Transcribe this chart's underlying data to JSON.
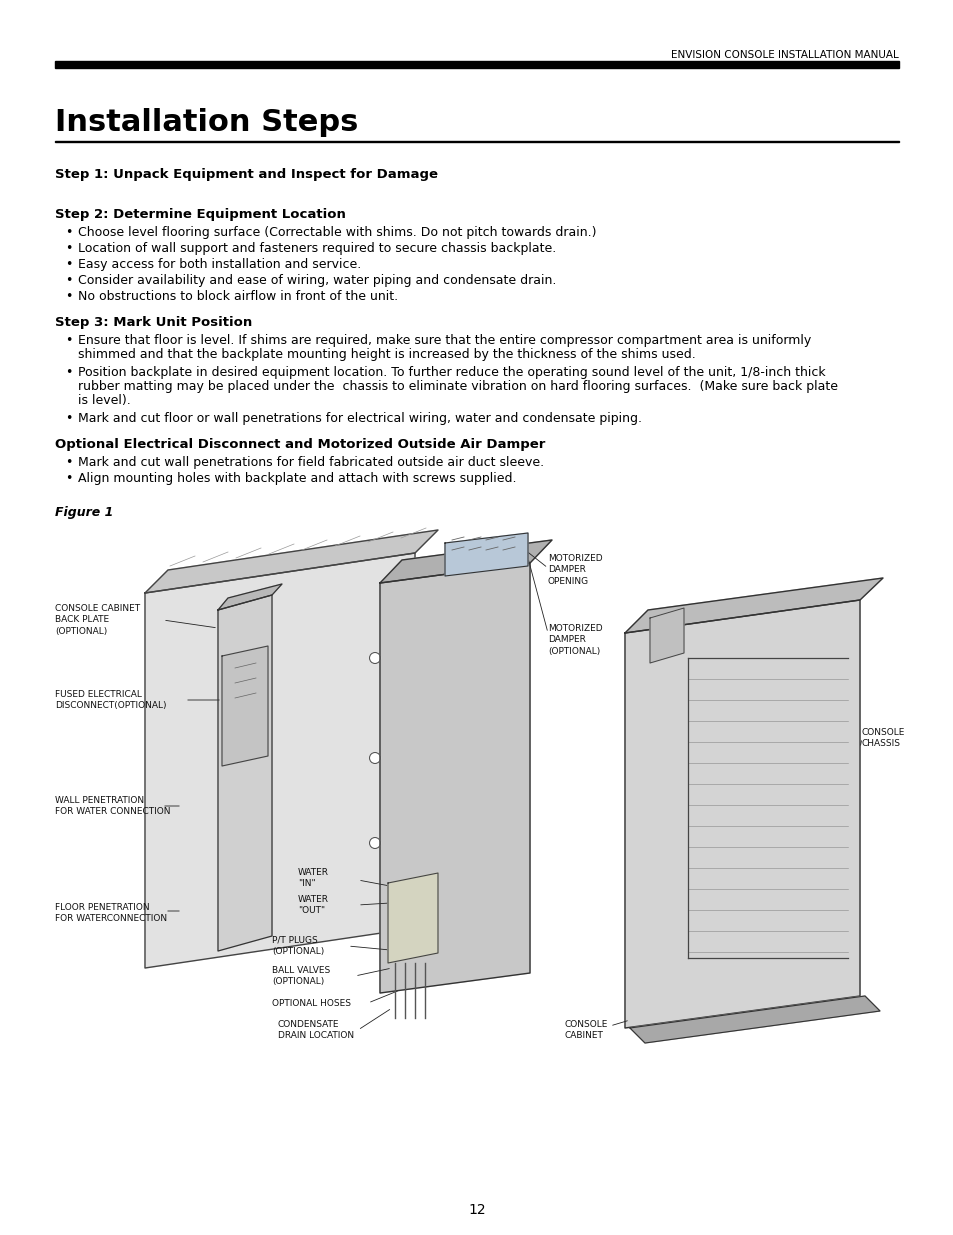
{
  "header_text": "ENVISION CONSOLE INSTALLATION MANUAL",
  "title": "Installation Steps",
  "step1_heading": "Step 1: Unpack Equipment and Inspect for Damage",
  "step2_heading": "Step 2: Determine Equipment Location",
  "step2_bullets": [
    "Choose level flooring surface (Correctable with shims. Do not pitch towards drain.)",
    "Location of wall support and fasteners required to secure chassis backplate.",
    "Easy access for both installation and service.",
    "Consider availability and ease of wiring, water piping and condensate drain.",
    "No obstructions to block airflow in front of the unit."
  ],
  "step3_heading": "Step 3: Mark Unit Position",
  "step3_bullet1_line1": "Ensure that floor is level. If shims are required, make sure that the entire compressor compartment area is uniformly",
  "step3_bullet1_line2": "shimmed and that the backplate mounting height is increased by the thickness of the shims used.",
  "step3_bullet2_line1": "Position backplate in desired equipment location. To further reduce the operating sound level of the unit, 1/8-inch thick",
  "step3_bullet2_line2": "rubber matting may be placed under the  chassis to eliminate vibration on hard flooring surfaces.  (Make sure back plate",
  "step3_bullet2_line3": "is level).",
  "step3_bullet3": "Mark and cut floor or wall penetrations for electrical wiring, water and condensate piping.",
  "optional_heading": "Optional Electrical Disconnect and Motorized Outside Air Damper",
  "optional_bullets": [
    "Mark and cut wall penetrations for field fabricated outside air duct sleeve.",
    "Align mounting holes with backplate and attach with screws supplied."
  ],
  "figure_label": "Figure 1",
  "page_number": "12",
  "bg_color": "#ffffff",
  "text_color": "#000000"
}
